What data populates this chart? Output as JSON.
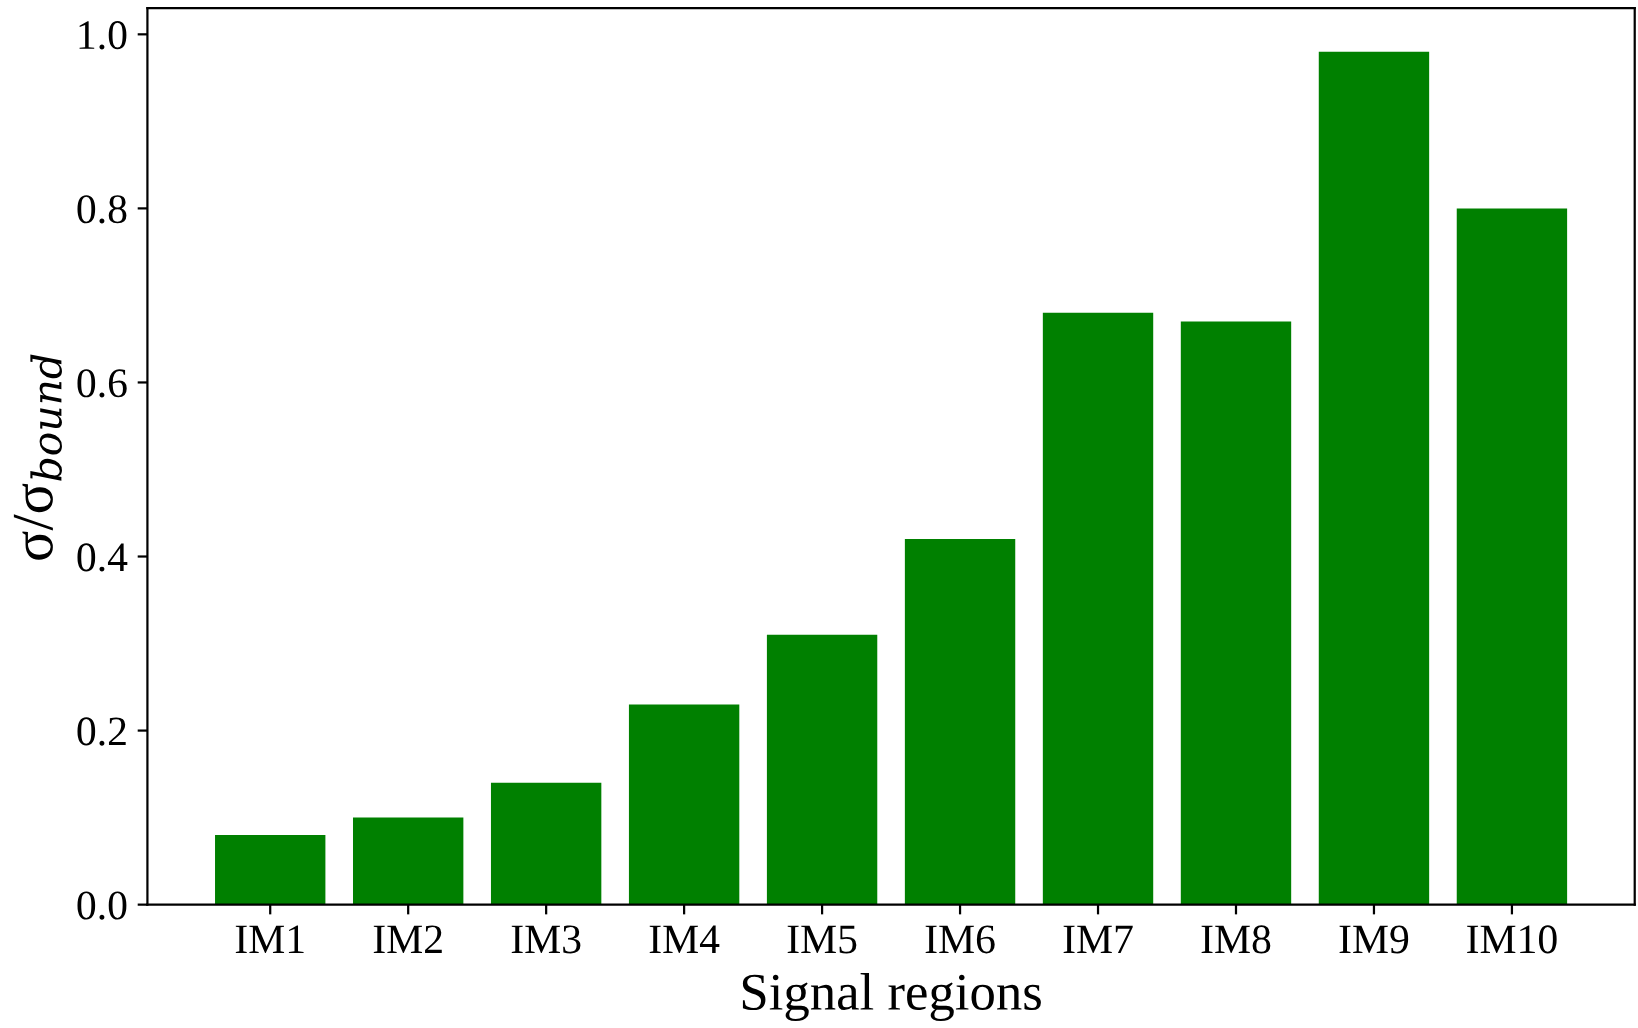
{
  "chart_data": {
    "type": "bar",
    "xlabel": "Signal regions",
    "ylabel": "σ/σ$_{bound}$",
    "categories": [
      "IM1",
      "IM2",
      "IM3",
      "IM4",
      "IM5",
      "IM6",
      "IM7",
      "IM8",
      "IM9",
      "IM10"
    ],
    "values": [
      0.08,
      0.1,
      0.14,
      0.23,
      0.31,
      0.42,
      0.68,
      0.67,
      0.98,
      0.8
    ],
    "color": "#008000",
    "ylim": [
      0,
      1.03
    ],
    "yticks": [
      {
        "value": 0,
        "label": "0.0"
      },
      {
        "value": 0.2,
        "label": "0.2"
      },
      {
        "value": 0.4,
        "label": "0.4"
      },
      {
        "value": 0.6,
        "label": "0.6"
      },
      {
        "value": 0.8,
        "label": "0.8"
      },
      {
        "value": 1,
        "label": "1.0"
      }
    ],
    "grid": false
  }
}
